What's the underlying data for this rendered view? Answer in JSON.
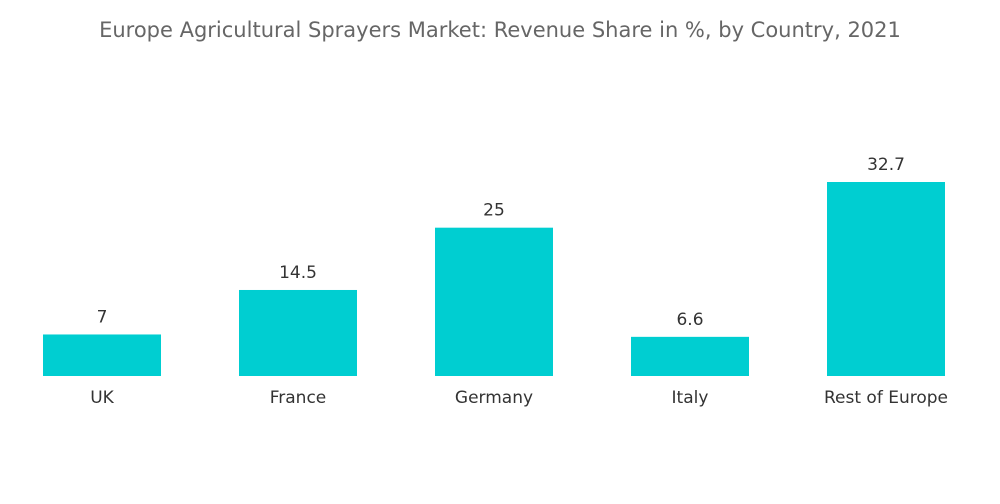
{
  "chart_data": {
    "type": "bar",
    "title": "Europe Agricultural Sprayers Market: Revenue Share in %, by Country, 2021",
    "categories": [
      "UK",
      "France",
      "Germany",
      "Italy",
      "Rest of Europe"
    ],
    "values": [
      7,
      14.5,
      25,
      6.6,
      32.7
    ],
    "value_labels": [
      "7",
      "14.5",
      "25",
      "6.6",
      "32.7"
    ],
    "xlabel": "",
    "ylabel": "",
    "ylim": [
      0,
      32.7
    ],
    "grid": false,
    "legend": "none",
    "bar_color": "#00CED1"
  }
}
